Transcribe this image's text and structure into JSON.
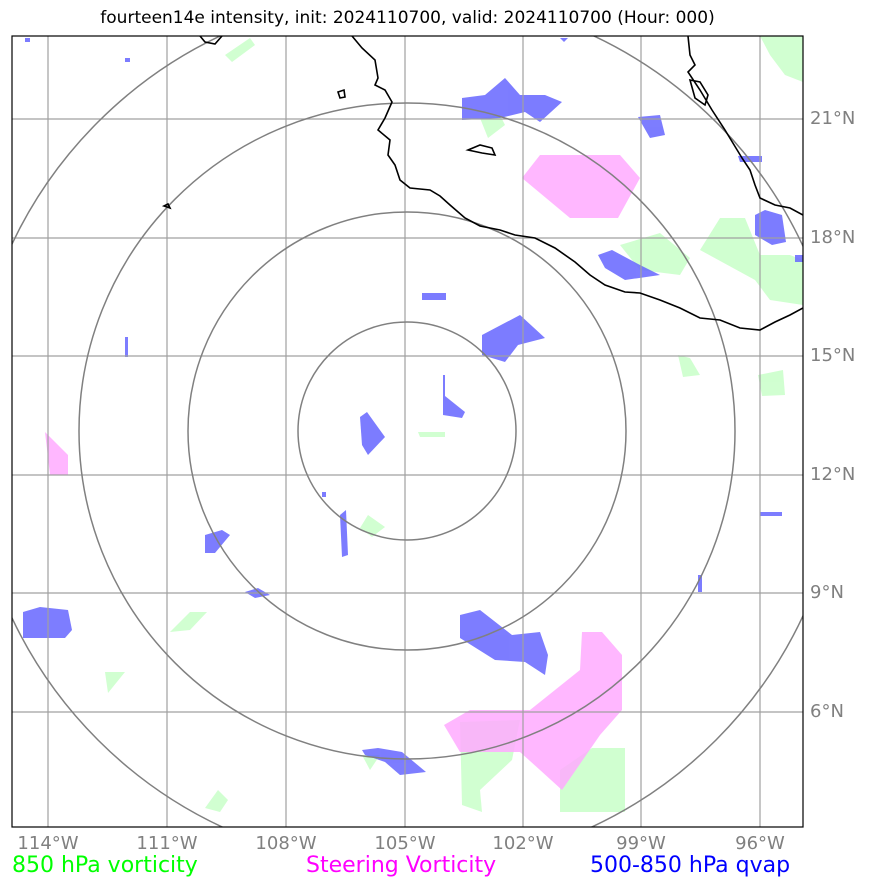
{
  "title": "fourteen14e intensity, init: 2024110700, valid: 2024110700 (Hour: 000)",
  "lat_labels": [
    "21°N",
    "18°N",
    "15°N",
    "12°N",
    "9°N",
    "6°N"
  ],
  "lon_labels": [
    "114°W",
    "111°W",
    "108°W",
    "105°W",
    "102°W",
    "99°W",
    "96°W"
  ],
  "legend": {
    "vort850": {
      "label": "850 hPa vorticity",
      "color": "#00ff00"
    },
    "steering": {
      "label": "Steering Vorticity",
      "color": "#ff00ff"
    },
    "qvap": {
      "label": "500-850 hPa qvap",
      "color": "#0000ff"
    }
  },
  "colors": {
    "vort850_fill": "#ccffcc",
    "steering_fill": "#ffaaff",
    "qvap_fill": "#6666ff",
    "grid": "#999999",
    "range_rings": "#808080",
    "coastline": "#000000"
  }
}
